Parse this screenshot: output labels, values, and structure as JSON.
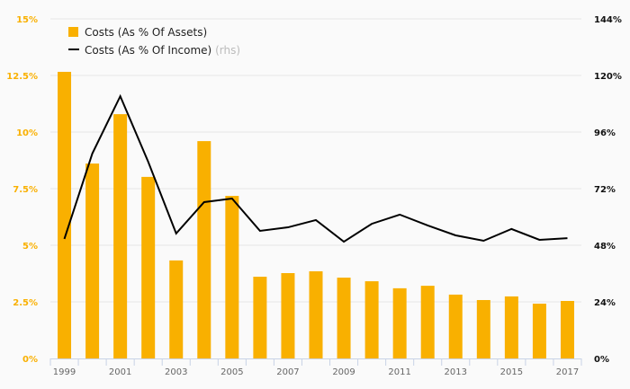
{
  "chart_data": {
    "type": "bar",
    "title": "",
    "categories": [
      "1999",
      "2000",
      "2001",
      "2002",
      "2003",
      "2004",
      "2005",
      "2006",
      "2007",
      "2008",
      "2009",
      "2010",
      "2011",
      "2012",
      "2013",
      "2014",
      "2015",
      "2016",
      "2017"
    ],
    "x_tick_labels": [
      "1999",
      "2001",
      "2003",
      "2005",
      "2007",
      "2009",
      "2011",
      "2013",
      "2015",
      "2017"
    ],
    "series": [
      {
        "name": "Costs (As % Of Assets)",
        "type": "bar",
        "axis": "left",
        "color": "#f9b000",
        "values": [
          12.66,
          8.61,
          10.79,
          8.02,
          4.33,
          9.6,
          7.18,
          3.61,
          3.77,
          3.85,
          3.57,
          3.41,
          3.1,
          3.21,
          2.82,
          2.58,
          2.74,
          2.42,
          2.54
        ]
      },
      {
        "name": "Costs (As % Of Income)",
        "suffix": "(rhs)",
        "type": "line",
        "axis": "right",
        "color": "#000000",
        "values": [
          50.7,
          86.9,
          111.2,
          83.4,
          53,
          66.3,
          67.8,
          54.1,
          55.6,
          58.7,
          49.5,
          57.1,
          61,
          56.4,
          52.2,
          49.9,
          54.9,
          50.3,
          51
        ]
      }
    ],
    "left_axis": {
      "ylim": [
        0,
        15
      ],
      "ticks": [
        "0%",
        "2.5%",
        "5%",
        "7.5%",
        "10%",
        "12.5%",
        "15%"
      ],
      "values": [
        0,
        2.5,
        5,
        7.5,
        10,
        12.5,
        15
      ],
      "color": "#f9b000"
    },
    "right_axis": {
      "ylim": [
        0,
        144
      ],
      "ticks": [
        "0%",
        "24%",
        "48%",
        "72%",
        "96%",
        "120%",
        "144%"
      ],
      "values": [
        0,
        24,
        48,
        72,
        96,
        120,
        144
      ],
      "color": "#111111"
    },
    "grid": true,
    "legend_position": "top-left"
  }
}
